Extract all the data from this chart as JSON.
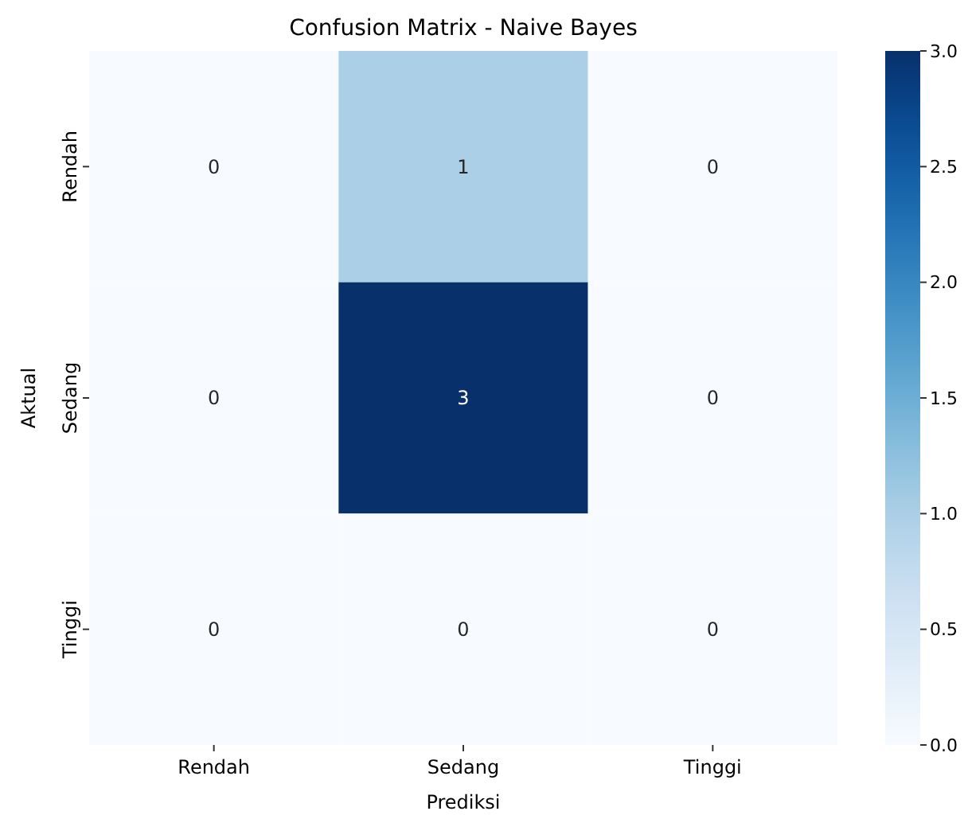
{
  "chart_data": {
    "type": "heatmap",
    "title": "Confusion Matrix - Naive Bayes",
    "xlabel": "Prediksi",
    "ylabel": "Aktual",
    "categories": [
      "Rendah",
      "Sedang",
      "Tinggi"
    ],
    "y_categories": [
      "Rendah",
      "Sedang",
      "Tinggi"
    ],
    "cells": [
      [
        0,
        1,
        0
      ],
      [
        0,
        3,
        0
      ],
      [
        0,
        0,
        0
      ]
    ],
    "data_labels": true,
    "clim": [
      0,
      3
    ],
    "cticks": [
      {
        "value": 0,
        "label": "0.0"
      },
      {
        "value": 0.5,
        "label": "0.5"
      },
      {
        "value": 1,
        "label": "1.0"
      },
      {
        "value": 1.5,
        "label": "1.5"
      },
      {
        "value": 2,
        "label": "2.0"
      },
      {
        "value": 2.5,
        "label": "2.5"
      },
      {
        "value": 3,
        "label": "3.0"
      }
    ]
  }
}
